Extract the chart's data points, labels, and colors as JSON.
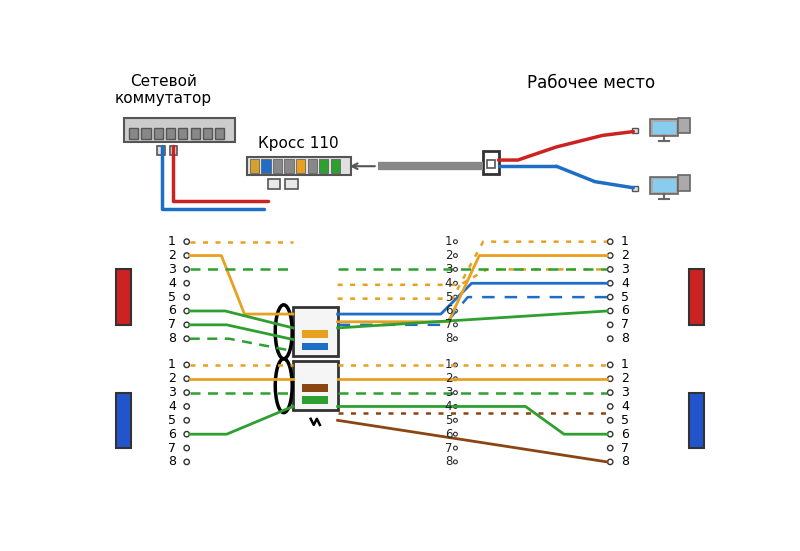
{
  "bg_color": "#ffffff",
  "title_left": "Сетевой\nкоммутатор",
  "title_right": "Рабочее место",
  "cross_label": "Кросс 110",
  "wire_blue": "#1e6ec8",
  "wire_orange": "#e8a020",
  "wire_green": "#2ea030",
  "wire_brown": "#8B4513",
  "wire_red": "#cc2222",
  "port_red": "#cc2222",
  "port_blue": "#2255cc",
  "gray_cable": "#888888",
  "switch_gray": "#b0b0b0",
  "connector_gray": "#d8d8d8",
  "pin_numbers_upper_left": [
    "1",
    "2",
    "3",
    "4",
    "5",
    "6",
    "7",
    "8"
  ],
  "pin_numbers_lower_left": [
    "1",
    "2",
    "3",
    "4",
    "5",
    "6",
    "7",
    "8"
  ],
  "pin_numbers_upper_right": [
    "1",
    "2",
    "3",
    "4",
    "5",
    "6",
    "7",
    "8"
  ],
  "pin_numbers_lower_right": [
    "1",
    "2",
    "3",
    "4",
    "5",
    "6",
    "7",
    "8"
  ],
  "center_labels": [
    "1",
    "2",
    "3",
    "4",
    "5",
    "6",
    "7",
    "8"
  ]
}
